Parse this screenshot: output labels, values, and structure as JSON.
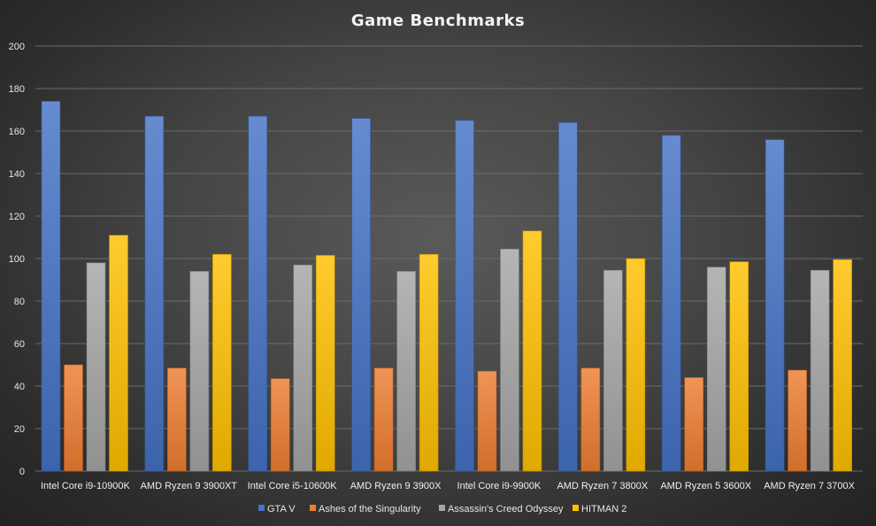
{
  "chart_data": {
    "type": "bar",
    "title": "Game Benchmarks",
    "categories": [
      "Intel Core i9-10900K",
      "AMD Ryzen 9 3900XT",
      "Intel Core i5-10600K",
      "AMD Ryzen 9 3900X",
      "Intel Core i9-9900K",
      "AMD Ryzen 7 3800X",
      "AMD Ryzen 5 3600X",
      "AMD Ryzen 7 3700X"
    ],
    "series": [
      {
        "name": "GTA V",
        "color": "#4472C4",
        "values": [
          174,
          167,
          167,
          166,
          165,
          164,
          158,
          156
        ]
      },
      {
        "name": "Ashes of the Singularity",
        "color": "#ED7D31",
        "values": [
          50,
          48.5,
          43.5,
          48.5,
          47,
          48.5,
          44,
          47.5
        ]
      },
      {
        "name": "Assassin's Creed Odyssey",
        "color": "#A5A5A5",
        "values": [
          98,
          94,
          97,
          94,
          104.5,
          94.5,
          96,
          94.5
        ]
      },
      {
        "name": "HITMAN 2",
        "color": "#FFC000",
        "values": [
          111,
          102,
          101.5,
          102,
          113,
          100,
          98.5,
          99.5
        ]
      }
    ],
    "ylim": [
      0,
      200
    ],
    "yticks": [
      0,
      20,
      40,
      60,
      80,
      100,
      120,
      140,
      160,
      180,
      200
    ],
    "grid": true,
    "legend": "bottom",
    "xlabel": "",
    "ylabel": ""
  }
}
